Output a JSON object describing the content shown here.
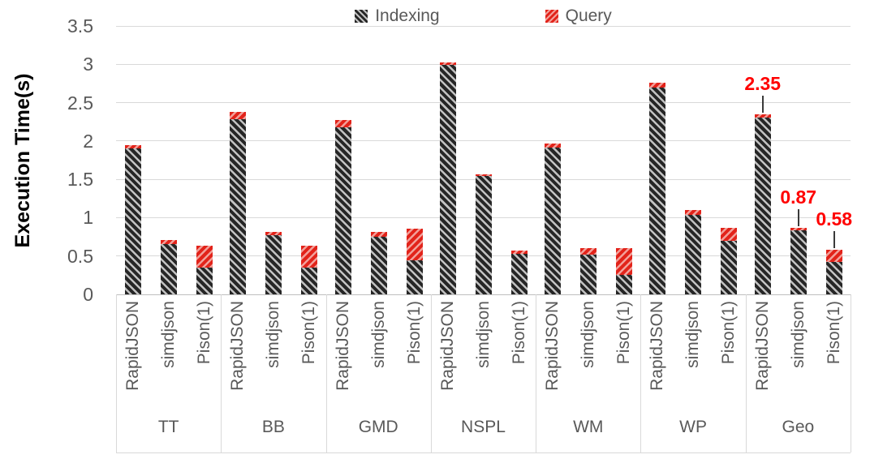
{
  "chart_data": {
    "type": "bar",
    "stacked": true,
    "title": "",
    "ylabel": "Execution Time(s)",
    "xlabel": "",
    "ylim": [
      0,
      3.5
    ],
    "yticks": [
      "0",
      "0.5",
      "1",
      "1.5",
      "2",
      "2.5",
      "3",
      "3.5"
    ],
    "grid": true,
    "legend_position": "top",
    "groups": [
      "TT",
      "BB",
      "GMD",
      "NSPL",
      "WM",
      "WP",
      "Geo"
    ],
    "bar_labels": [
      "RapidJSON",
      "simdjson",
      "Pison(1)"
    ],
    "series": [
      {
        "name": "Indexing",
        "values": [
          [
            1.9,
            0.66,
            0.35
          ],
          [
            2.28,
            0.77,
            0.35
          ],
          [
            2.18,
            0.75,
            0.44
          ],
          [
            2.99,
            1.54,
            0.53
          ],
          [
            1.91,
            0.52,
            0.25
          ],
          [
            2.7,
            1.04,
            0.7
          ],
          [
            2.3,
            0.84,
            0.42
          ]
        ]
      },
      {
        "name": "Query",
        "values": [
          [
            0.05,
            0.05,
            0.28
          ],
          [
            0.1,
            0.04,
            0.28
          ],
          [
            0.09,
            0.06,
            0.42
          ],
          [
            0.03,
            0.02,
            0.04
          ],
          [
            0.06,
            0.08,
            0.35
          ],
          [
            0.06,
            0.06,
            0.17
          ],
          [
            0.05,
            0.03,
            0.16
          ]
        ]
      }
    ],
    "annotations": [
      {
        "text": "2.35",
        "group_index": 6,
        "bar_index": 0
      },
      {
        "text": "0.87",
        "group_index": 6,
        "bar_index": 1
      },
      {
        "text": "0.58",
        "group_index": 6,
        "bar_index": 2
      }
    ]
  },
  "colors": {
    "indexing_fill": "#262626",
    "indexing_stripe": "#c2c2c2",
    "query_fill": "#e2231a",
    "query_stripe": "#f2a09a",
    "annotation_text": "#ff0000",
    "leader_line": "#3a3a3a",
    "gridline": "#d9d9d9",
    "axis_line": "#bfbfbf",
    "axis_text": "#595959",
    "y_title": "#000000"
  }
}
